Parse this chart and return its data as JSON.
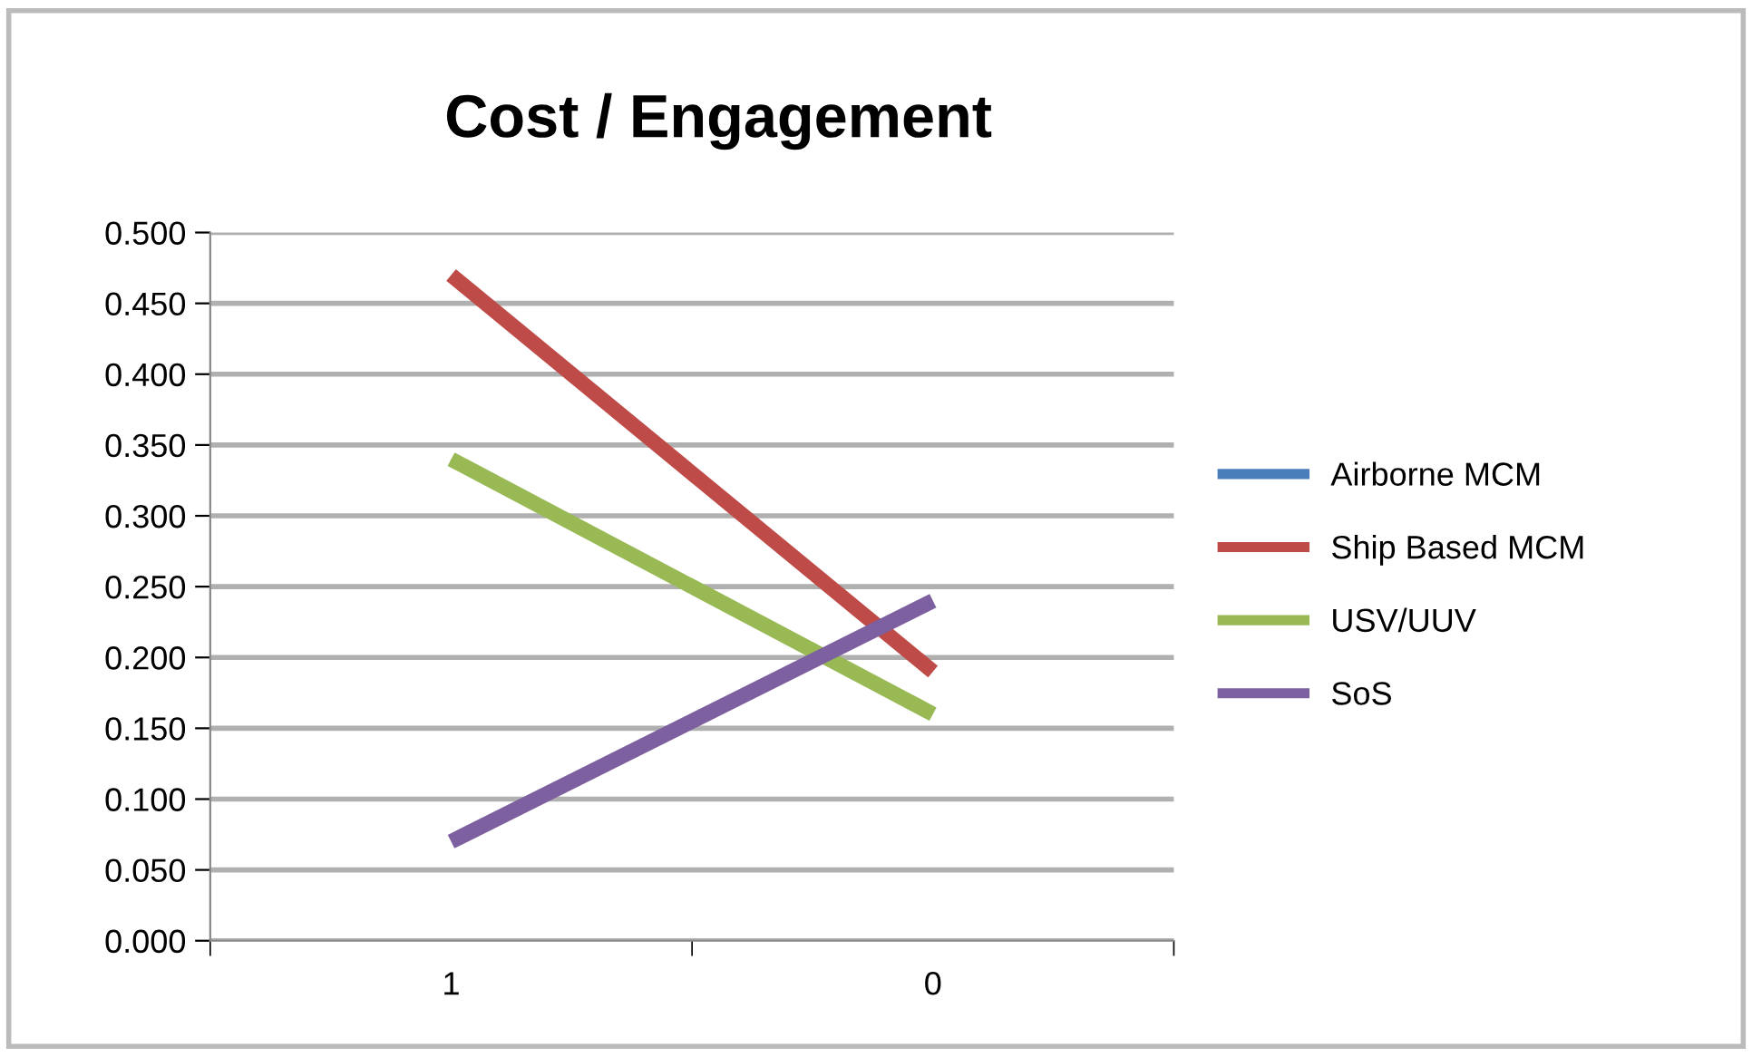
{
  "chart_data": {
    "type": "line",
    "title": "Cost / Engagement",
    "categories": [
      "1",
      "0"
    ],
    "series": [
      {
        "name": "Airborne MCM",
        "color": "#4a7ebb",
        "values": [
          null,
          null
        ]
      },
      {
        "name": "Ship Based MCM",
        "color": "#be4b48",
        "values": [
          0.47,
          0.19
        ]
      },
      {
        "name": "USV/UUV",
        "color": "#98b954",
        "values": [
          0.34,
          0.16
        ]
      },
      {
        "name": "SoS",
        "color": "#7d60a0",
        "values": [
          0.07,
          0.24
        ]
      }
    ],
    "ylim": [
      0,
      0.5
    ],
    "yticks": [
      {
        "value": 0,
        "label": "0.000"
      },
      {
        "value": 0.05,
        "label": "0.050"
      },
      {
        "value": 0.1,
        "label": "0.100"
      },
      {
        "value": 0.15,
        "label": "0.150"
      },
      {
        "value": 0.2,
        "label": "0.200"
      },
      {
        "value": 0.25,
        "label": "0.250"
      },
      {
        "value": 0.3,
        "label": "0.300"
      },
      {
        "value": 0.35,
        "label": "0.350"
      },
      {
        "value": 0.4,
        "label": "0.400"
      },
      {
        "value": 0.45,
        "label": "0.450"
      },
      {
        "value": 0.5,
        "label": "0.500"
      }
    ],
    "grid": "y",
    "legend": "right",
    "marker": "none",
    "line_style": "solid"
  }
}
